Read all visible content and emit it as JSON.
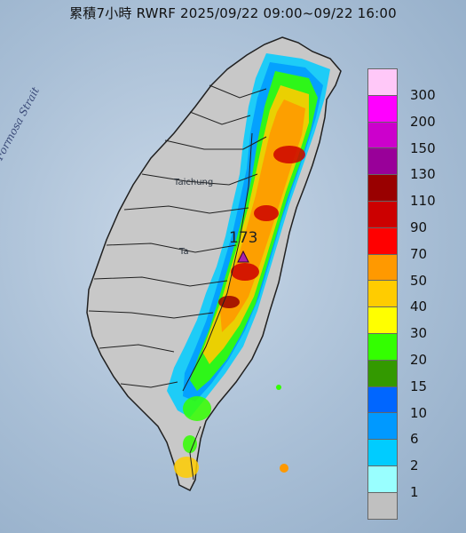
{
  "title": "累積7小時 RWRF 2025/09/22 09:00~09/22 16:00",
  "strait_label": "Formosa Strait",
  "city_labels": [
    "Taichung",
    "Ta"
  ],
  "max_value_label": "173",
  "legend": {
    "levels": [
      {
        "label": "300",
        "color": "#ffc8f8"
      },
      {
        "label": "200",
        "color": "#ff00ff"
      },
      {
        "label": "150",
        "color": "#cc00cc"
      },
      {
        "label": "130",
        "color": "#990099"
      },
      {
        "label": "110",
        "color": "#990000"
      },
      {
        "label": "90",
        "color": "#cc0000"
      },
      {
        "label": "70",
        "color": "#ff0000"
      },
      {
        "label": "50",
        "color": "#ff9900"
      },
      {
        "label": "40",
        "color": "#ffcc00"
      },
      {
        "label": "30",
        "color": "#ffff00"
      },
      {
        "label": "20",
        "color": "#33ff00"
      },
      {
        "label": "15",
        "color": "#339900"
      },
      {
        "label": "10",
        "color": "#0066ff"
      },
      {
        "label": "6",
        "color": "#0099ff"
      },
      {
        "label": "2",
        "color": "#00ccff"
      },
      {
        "label": "1",
        "color": "#99ffff"
      },
      {
        "label": "",
        "color": "#c0c0c0"
      }
    ]
  },
  "colors": {
    "land": "#c8c8c8",
    "sea": "#a9bfd6",
    "border": "#202020"
  }
}
